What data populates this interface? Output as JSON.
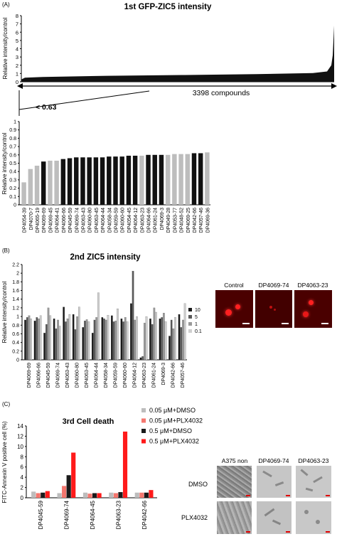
{
  "panel_a": {
    "letter": "(A)",
    "title": "1st GFP-ZIC5 intensity",
    "overview": {
      "ylabel": "Relative intensity/control",
      "yticks": [
        "8",
        "7",
        "6",
        "5",
        "4",
        "3",
        "2",
        "1",
        "0"
      ],
      "ylim": [
        0,
        8
      ],
      "compounds_label": "3398 compounds"
    },
    "threshold_label": "< 0.63"
  },
  "panel_b": {
    "letter": "(B)",
    "title": "2nd ZIC5 intensity"
  },
  "panel_c": {
    "letter": "(C)",
    "title": "3rd Cell death"
  },
  "image_labels": {
    "b": [
      "Control",
      "DP4069-74",
      "DP4063-23"
    ],
    "c_cols": [
      "A375 non",
      "DP4069-74",
      "DP4063-23"
    ],
    "c_rows": [
      "DMSO",
      "PLX4032"
    ]
  },
  "colors": {
    "black": "#111111",
    "gray": "#bdbdbd",
    "dark": "#1a1a1a",
    "mid": "#595959",
    "light": "#9a9a9a",
    "lightest": "#cfcfcf",
    "red": "#ff1a1a",
    "salmon": "#f4766e",
    "fluor": "#9b0000"
  },
  "chart_data": [
    {
      "id": "a_sub",
      "type": "bar",
      "ylabel": "Relative intensity/control",
      "ylim": [
        0,
        1
      ],
      "yticks": [
        "1",
        "0.9",
        "0.8",
        "0.7",
        "0.6",
        "0.5",
        "0.4",
        "0.3",
        "0.2",
        "0.1",
        "0"
      ],
      "categories": [
        "DP4054-39",
        "DP4070-7",
        "DP4065-19",
        "DP4069-69",
        "DP4069-45",
        "DP4064-41",
        "DP4066-66",
        "DP4045-59",
        "DP4069-74",
        "DP4063-43",
        "DP4060-80",
        "DP4063-45",
        "DP4064-44",
        "DP4058-34",
        "DP4059-59",
        "DP4060-60",
        "DP4054-45",
        "DP4064-12",
        "DP4063-23",
        "DP4064-66",
        "DP4061-24",
        "DP4069-3",
        "DP4049-28",
        "DP4053-77",
        "DP4048-52",
        "DP4069-25",
        "DP4042-66",
        "DP4057-46",
        "DP4069-36"
      ],
      "values": [
        0.27,
        0.43,
        0.47,
        0.52,
        0.53,
        0.53,
        0.55,
        0.56,
        0.57,
        0.57,
        0.57,
        0.57,
        0.57,
        0.58,
        0.58,
        0.58,
        0.59,
        0.59,
        0.59,
        0.6,
        0.6,
        0.6,
        0.6,
        0.61,
        0.61,
        0.61,
        0.62,
        0.62,
        0.63
      ],
      "highlight": [
        false,
        false,
        false,
        true,
        false,
        false,
        true,
        true,
        true,
        true,
        true,
        true,
        true,
        true,
        true,
        true,
        true,
        true,
        false,
        true,
        true,
        true,
        false,
        false,
        false,
        false,
        true,
        true,
        false
      ]
    },
    {
      "id": "b",
      "type": "bar",
      "ylabel": "Relative intensity/control",
      "ylim": [
        0,
        2.2
      ],
      "yticks": [
        "2.2",
        "2",
        "1.8",
        "1.6",
        "1.4",
        "1.2",
        "1",
        "0.8",
        "0.6",
        "0.4",
        "0.2",
        "0"
      ],
      "categories": [
        "DP4069-69",
        "DP4066-66",
        "DP4045-59",
        "DP4069-74",
        "DP4063-43",
        "DP4060-80",
        "DP4063-45",
        "DP4064-44",
        "DP4058-34",
        "DP4059-59",
        "DP4060-60",
        "DP4064-12",
        "DP4063-23",
        "DP4061-24",
        "DP4069-3",
        "DP4042-66",
        "DP4057-46"
      ],
      "legend": [
        "10",
        "5",
        "1",
        "0.1"
      ],
      "series": [
        {
          "name": "10",
          "values": [
            0.92,
            0.9,
            0.62,
            0.95,
            1.22,
            1.05,
            0.75,
            0.62,
            0.98,
            1.02,
            0.95,
            1.3,
            0.05,
            0.95,
            0.95,
            0.55,
            1.05
          ]
        },
        {
          "name": "5",
          "values": [
            0.98,
            0.98,
            0.82,
            0.72,
            0.88,
            0.7,
            0.9,
            0.92,
            0.95,
            0.88,
            0.88,
            2.05,
            0.08,
            0.82,
            0.98,
            0.92,
            0.75
          ]
        },
        {
          "name": "1",
          "values": [
            1.02,
            0.95,
            1.2,
            0.92,
            0.95,
            1.0,
            0.93,
            0.98,
            0.92,
            0.9,
            0.98,
            0.92,
            0.85,
            1.2,
            1.08,
            0.72,
            0.92
          ]
        },
        {
          "name": "0.1",
          "values": [
            0.95,
            1.02,
            1.02,
            0.78,
            1.05,
            1.22,
            0.88,
            1.55,
            1.03,
            1.18,
            0.88,
            1.0,
            1.0,
            1.1,
            0.88,
            0.98,
            1.3
          ]
        }
      ]
    },
    {
      "id": "c",
      "type": "bar",
      "title": "3rd Cell death",
      "ylabel": "FITC-Annexin V positive cell (%)",
      "ylim": [
        0,
        14
      ],
      "yticks": [
        "14",
        "12",
        "10",
        "8",
        "6",
        "4",
        "2",
        "0"
      ],
      "categories": [
        "DP4045-59",
        "DP4069-74",
        "DP4064-45",
        "DP4063-23",
        "DP4042-66"
      ],
      "legend_position": "right",
      "series": [
        {
          "name": "0.05 μM+DMSO",
          "values": [
            1.2,
            0.9,
            1.0,
            1.0,
            1.0
          ]
        },
        {
          "name": "0.05 μM+PLX4032",
          "values": [
            0.9,
            2.3,
            0.8,
            0.9,
            1.0
          ]
        },
        {
          "name": "0.5 μM+DMSO",
          "values": [
            1.0,
            4.4,
            0.9,
            1.1,
            1.0
          ]
        },
        {
          "name": "0.5 μM+PLX4032",
          "values": [
            1.3,
            8.8,
            0.9,
            12.9,
            1.5
          ]
        }
      ]
    }
  ]
}
